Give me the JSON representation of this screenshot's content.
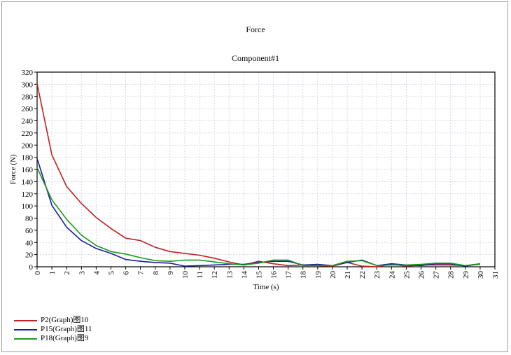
{
  "chart_data": {
    "type": "line",
    "title": "Force",
    "subtitle": "Component#1",
    "xlabel": "Time (s)",
    "ylabel": "Force (N)",
    "xlim": [
      0,
      31
    ],
    "ylim": [
      0,
      320
    ],
    "xticks": [
      0,
      1,
      2,
      3,
      4,
      5,
      6,
      7,
      8,
      9,
      10,
      11,
      12,
      13,
      14,
      15,
      16,
      17,
      18,
      19,
      20,
      21,
      22,
      23,
      24,
      25,
      26,
      27,
      28,
      29,
      30,
      31
    ],
    "yticks": [
      0,
      20,
      40,
      60,
      80,
      100,
      120,
      140,
      160,
      180,
      200,
      220,
      240,
      260,
      280,
      300,
      320
    ],
    "grid": true,
    "legend_position": "bottom-left",
    "x": [
      0,
      1,
      2,
      3,
      4,
      5,
      6,
      7,
      8,
      9,
      10,
      11,
      12,
      13,
      14,
      15,
      16,
      17,
      18,
      19,
      20,
      21,
      22,
      23,
      24,
      25,
      26,
      27,
      28,
      29,
      30
    ],
    "series": [
      {
        "name": "P2(Graph)图10",
        "color": "#c0201f",
        "values": [
          301,
          184,
          132,
          104,
          81,
          63,
          47,
          43,
          32,
          25,
          22,
          19,
          14,
          8,
          3,
          9,
          5,
          2,
          3,
          2,
          1,
          7,
          1,
          0,
          4,
          1,
          3,
          3,
          3,
          2,
          4
        ]
      },
      {
        "name": "P15(Graph)图11",
        "color": "#1c1f9c",
        "values": [
          178,
          101,
          65,
          43,
          30,
          22,
          12,
          9,
          7,
          6,
          1,
          2,
          3,
          4,
          4,
          7,
          9,
          9,
          3,
          4,
          2,
          7,
          11,
          2,
          5,
          3,
          2,
          5,
          5,
          1,
          5
        ]
      },
      {
        "name": "P18(Graph)图9",
        "color": "#1d9a1d",
        "values": [
          163,
          110,
          78,
          52,
          35,
          25,
          21,
          15,
          10,
          9,
          11,
          11,
          8,
          5,
          3,
          6,
          11,
          11,
          2,
          2,
          2,
          9,
          10,
          2,
          3,
          3,
          4,
          6,
          6,
          2,
          5
        ]
      }
    ]
  }
}
